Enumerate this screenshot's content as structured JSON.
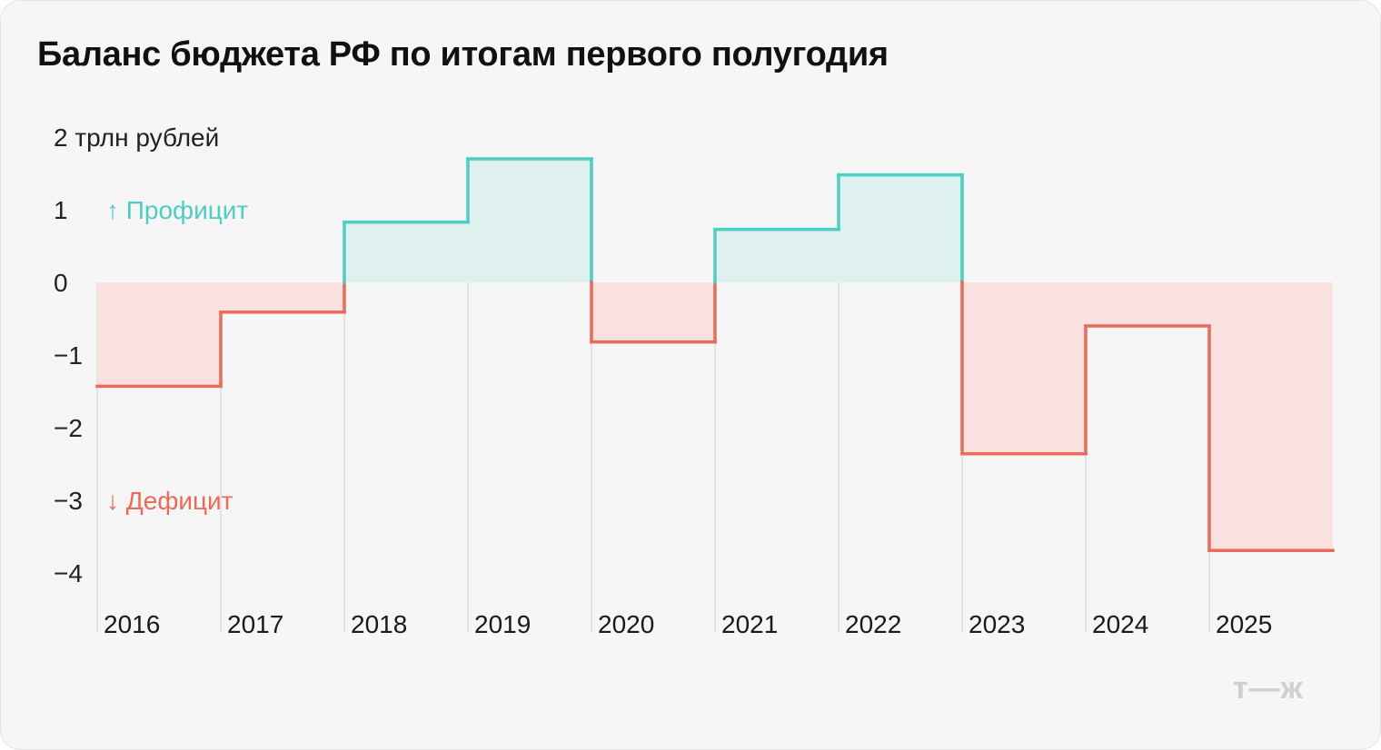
{
  "title": "Баланс бюджета РФ по итогам первого полугодия",
  "logo": "т—ж",
  "colors": {
    "surplus_line": "#4ecdc4",
    "surplus_fill": "#dff1ee",
    "deficit_line": "#ec6a5c",
    "deficit_fill": "#f8e1df",
    "grid": "#dcdcdc"
  },
  "chart_data": {
    "type": "step-bar",
    "title": "Баланс бюджета РФ по итогам первого полугодия",
    "unit": "трлн рублей",
    "ylim": [
      -4.4,
      2
    ],
    "yticks": [
      {
        "value": 2,
        "label": "2 трлн рублей"
      },
      {
        "value": 1,
        "label": "1"
      },
      {
        "value": 0,
        "label": "0"
      },
      {
        "value": -1,
        "label": "−1"
      },
      {
        "value": -2,
        "label": "−2"
      },
      {
        "value": -3,
        "label": "−3"
      },
      {
        "value": -4,
        "label": "−4"
      }
    ],
    "categories": [
      "2016",
      "2017",
      "2018",
      "2019",
      "2020",
      "2021",
      "2022",
      "2023",
      "2024",
      "2025"
    ],
    "values": [
      -1.43,
      -0.41,
      0.83,
      1.7,
      -0.82,
      0.73,
      1.48,
      -2.36,
      -0.6,
      -3.69
    ],
    "annotations": {
      "surplus": "↑ Профицит",
      "deficit": "↓ Дефицит"
    },
    "grid": "vertical"
  }
}
